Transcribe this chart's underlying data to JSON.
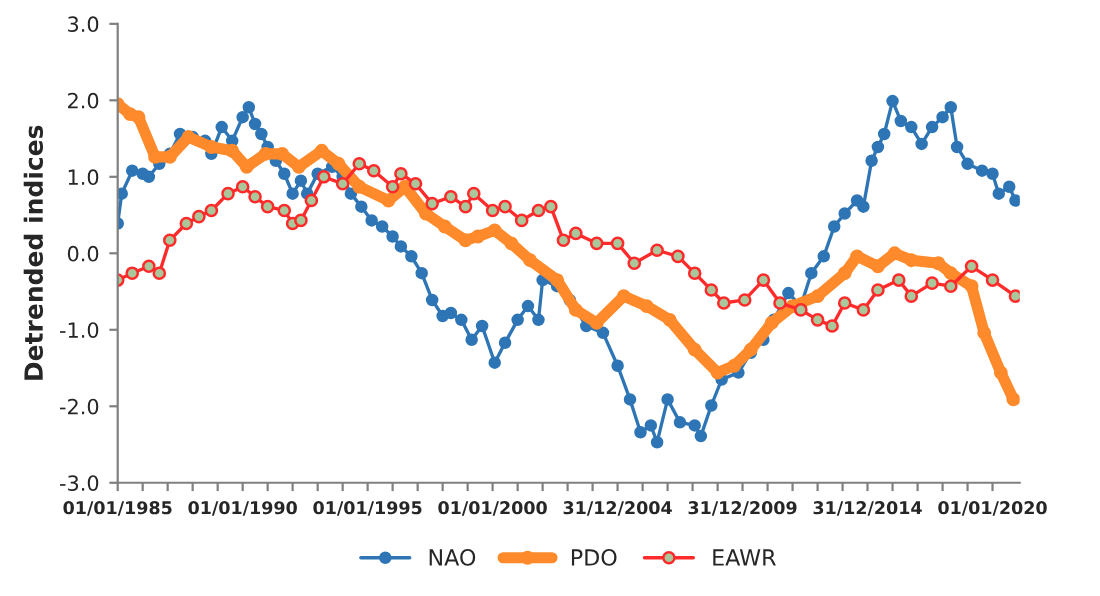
{
  "chart_data": {
    "type": "line",
    "ylabel": "Detrended indices",
    "xlim": [
      "1985-01-01",
      "2021-02-01"
    ],
    "xticks": [
      {
        "value": "1985-01-01",
        "label": "01/01/1985"
      },
      {
        "value": "1986-01-01",
        "label": null
      },
      {
        "value": "1987-01-01",
        "label": null
      },
      {
        "value": "1988-01-01",
        "label": null
      },
      {
        "value": "1989-01-01",
        "label": null
      },
      {
        "value": "1990-01-01",
        "label": "01/01/1990"
      },
      {
        "value": "1991-01-01",
        "label": null
      },
      {
        "value": "1992-01-01",
        "label": null
      },
      {
        "value": "1993-01-01",
        "label": null
      },
      {
        "value": "1994-01-01",
        "label": null
      },
      {
        "value": "1995-01-01",
        "label": "01/01/1995"
      },
      {
        "value": "1996-01-01",
        "label": null
      },
      {
        "value": "1997-01-01",
        "label": null
      },
      {
        "value": "1998-01-01",
        "label": null
      },
      {
        "value": "1999-01-01",
        "label": null
      },
      {
        "value": "2000-01-01",
        "label": "01/01/2000"
      },
      {
        "value": "2001-01-01",
        "label": null
      },
      {
        "value": "2002-01-01",
        "label": null
      },
      {
        "value": "2003-01-01",
        "label": null
      },
      {
        "value": "2004-01-01",
        "label": null
      },
      {
        "value": "2004-12-31",
        "label": "31/12/2004"
      },
      {
        "value": "2006-01-01",
        "label": null
      },
      {
        "value": "2007-01-01",
        "label": null
      },
      {
        "value": "2008-01-01",
        "label": null
      },
      {
        "value": "2009-01-01",
        "label": null
      },
      {
        "value": "2009-12-31",
        "label": "31/12/2009"
      },
      {
        "value": "2011-01-01",
        "label": null
      },
      {
        "value": "2012-01-01",
        "label": null
      },
      {
        "value": "2013-01-01",
        "label": null
      },
      {
        "value": "2014-01-01",
        "label": null
      },
      {
        "value": "2014-12-31",
        "label": "31/12/2014"
      },
      {
        "value": "2016-01-01",
        "label": null
      },
      {
        "value": "2017-01-01",
        "label": null
      },
      {
        "value": "2018-01-01",
        "label": null
      },
      {
        "value": "2019-01-01",
        "label": null
      },
      {
        "value": "2020-01-01",
        "label": "01/01/2020"
      }
    ],
    "ylim": [
      -3,
      3
    ],
    "yticks": [
      {
        "value": -3,
        "label": "-3.0"
      },
      {
        "value": -2,
        "label": "-2.0"
      },
      {
        "value": -1,
        "label": "-1.0"
      },
      {
        "value": 0,
        "label": "0.0"
      },
      {
        "value": 1,
        "label": "1.0"
      },
      {
        "value": 2,
        "label": "2.0"
      },
      {
        "value": 3,
        "label": "3.0"
      }
    ],
    "grid": false,
    "legend": "bottom",
    "marker": "circle",
    "line_style": "solid",
    "series": [
      {
        "name": "NAO",
        "color": "#2e75b6",
        "x": [
          "1985-01",
          "1985-03",
          "1985-08",
          "1986-01",
          "1986-04",
          "1986-09",
          "1987-02",
          "1987-07",
          "1988-01",
          "1988-07",
          "1988-10",
          "1989-03",
          "1989-08",
          "1990-01",
          "1990-04",
          "1990-07",
          "1990-10",
          "1991-01",
          "1991-05",
          "1991-09",
          "1992-01",
          "1992-05",
          "1992-08",
          "1993-01",
          "1993-08",
          "1994-01",
          "1994-05",
          "1994-10",
          "1995-03",
          "1995-08",
          "1996-01",
          "1996-05",
          "1996-10",
          "1997-03",
          "1997-08",
          "1998-01",
          "1998-05",
          "1998-10",
          "1999-03",
          "1999-08",
          "2000-02",
          "2000-07",
          "2001-01",
          "2001-06",
          "2001-11",
          "2002-01",
          "2002-08",
          "2003-02",
          "2003-10",
          "2004-06",
          "2005-01",
          "2005-07",
          "2005-12",
          "2006-05",
          "2006-08",
          "2007-01",
          "2007-07",
          "2008-02",
          "2008-05",
          "2008-10",
          "2009-03",
          "2009-11",
          "2010-05",
          "2010-11",
          "2011-04",
          "2011-11",
          "2012-05",
          "2012-10",
          "2013-04",
          "2013-09",
          "2014-02",
          "2014-08",
          "2014-11",
          "2015-03",
          "2015-06",
          "2015-09",
          "2016-01",
          "2016-05",
          "2016-10",
          "2017-03",
          "2017-08",
          "2018-01",
          "2018-05",
          "2018-08",
          "2019-01",
          "2019-08",
          "2020-01",
          "2020-04",
          "2020-09",
          "2020-12"
        ],
        "values": [
          0.39,
          0.78,
          1.08,
          1.04,
          1.0,
          1.17,
          1.3,
          1.56,
          1.52,
          1.47,
          1.3,
          1.65,
          1.47,
          1.78,
          1.91,
          1.69,
          1.56,
          1.39,
          1.21,
          1.04,
          0.78,
          0.95,
          0.78,
          1.04,
          1.13,
          1.0,
          0.78,
          0.61,
          0.43,
          0.35,
          0.22,
          0.09,
          -0.04,
          -0.26,
          -0.61,
          -0.82,
          -0.78,
          -0.87,
          -1.13,
          -0.95,
          -1.43,
          -1.17,
          -0.87,
          -0.69,
          -0.87,
          -0.35,
          -0.43,
          -0.61,
          -0.95,
          -1.04,
          -1.47,
          -1.91,
          -2.34,
          -2.25,
          -2.47,
          -1.91,
          -2.21,
          -2.25,
          -2.39,
          -1.99,
          -1.65,
          -1.56,
          -1.3,
          -1.13,
          -0.87,
          -0.52,
          -0.69,
          -0.26,
          -0.04,
          0.35,
          0.52,
          0.69,
          0.61,
          1.21,
          1.39,
          1.56,
          1.99,
          1.73,
          1.65,
          1.43,
          1.65,
          1.78,
          1.91,
          1.39,
          1.17,
          1.08,
          1.04,
          0.78,
          0.87,
          0.69
        ]
      },
      {
        "name": "PDO",
        "color": "#ff8a2b",
        "x": [
          "1985-01",
          "1985-07",
          "1985-11",
          "1986-07",
          "1987-02",
          "1987-11",
          "1988-10",
          "1989-08",
          "1990-03",
          "1990-12",
          "1991-08",
          "1992-04",
          "1993-03",
          "1993-11",
          "1994-09",
          "1995-11",
          "1996-07",
          "1997-05",
          "1998-02",
          "1998-12",
          "1999-06",
          "2000-02",
          "2000-10",
          "2001-07",
          "2002-08",
          "2003-05",
          "2004-03",
          "2005-04",
          "2006-03",
          "2007-02",
          "2008-02",
          "2009-01",
          "2009-09",
          "2010-05",
          "2011-03",
          "2012-01",
          "2013-01",
          "2014-02",
          "2014-08",
          "2015-06",
          "2016-02",
          "2016-10",
          "2017-11",
          "2018-05",
          "2019-03",
          "2019-09",
          "2020-05",
          "2020-11"
        ],
        "values": [
          1.95,
          1.82,
          1.78,
          1.26,
          1.26,
          1.52,
          1.39,
          1.34,
          1.13,
          1.3,
          1.3,
          1.13,
          1.34,
          1.17,
          0.87,
          0.69,
          0.87,
          0.52,
          0.35,
          0.17,
          0.22,
          0.3,
          0.13,
          -0.09,
          -0.35,
          -0.74,
          -0.91,
          -0.56,
          -0.69,
          -0.87,
          -1.26,
          -1.56,
          -1.47,
          -1.26,
          -0.91,
          -0.69,
          -0.56,
          -0.26,
          -0.04,
          -0.17,
          0.0,
          -0.09,
          -0.13,
          -0.26,
          -0.43,
          -1.04,
          -1.56,
          -1.91
        ]
      },
      {
        "name": "EAWR",
        "color": "#ff2b2b",
        "x": [
          "1985-01",
          "1985-08",
          "1986-04",
          "1986-09",
          "1987-02",
          "1987-10",
          "1988-04",
          "1988-10",
          "1989-06",
          "1990-01",
          "1990-07",
          "1991-01",
          "1991-09",
          "1992-01",
          "1992-05",
          "1992-10",
          "1993-04",
          "1994-01",
          "1994-09",
          "1995-04",
          "1996-01",
          "1996-05",
          "1996-12",
          "1997-08",
          "1998-05",
          "1998-12",
          "1999-04",
          "2000-01",
          "2000-07",
          "2001-03",
          "2001-11",
          "2002-05",
          "2002-11",
          "2003-05",
          "2004-03",
          "2005-01",
          "2005-09",
          "2006-08",
          "2007-06",
          "2008-02",
          "2008-10",
          "2009-04",
          "2010-02",
          "2010-11",
          "2011-07",
          "2012-05",
          "2013-01",
          "2013-08",
          "2014-02",
          "2014-11",
          "2015-06",
          "2016-04",
          "2016-10",
          "2017-08",
          "2018-05",
          "2019-03",
          "2020-01",
          "2020-12"
        ],
        "values": [
          -0.35,
          -0.26,
          -0.17,
          -0.26,
          0.17,
          0.39,
          0.48,
          0.56,
          0.78,
          0.87,
          0.74,
          0.61,
          0.56,
          0.39,
          0.43,
          0.69,
          1.0,
          0.91,
          1.17,
          1.08,
          0.87,
          1.04,
          0.91,
          0.65,
          0.74,
          0.61,
          0.78,
          0.56,
          0.61,
          0.43,
          0.56,
          0.61,
          0.17,
          0.26,
          0.13,
          0.13,
          -0.13,
          0.04,
          -0.04,
          -0.26,
          -0.48,
          -0.65,
          -0.61,
          -0.35,
          -0.65,
          -0.74,
          -0.87,
          -0.95,
          -0.65,
          -0.74,
          -0.48,
          -0.35,
          -0.56,
          -0.39,
          -0.43,
          -0.17,
          -0.35,
          -0.56
        ]
      }
    ]
  }
}
